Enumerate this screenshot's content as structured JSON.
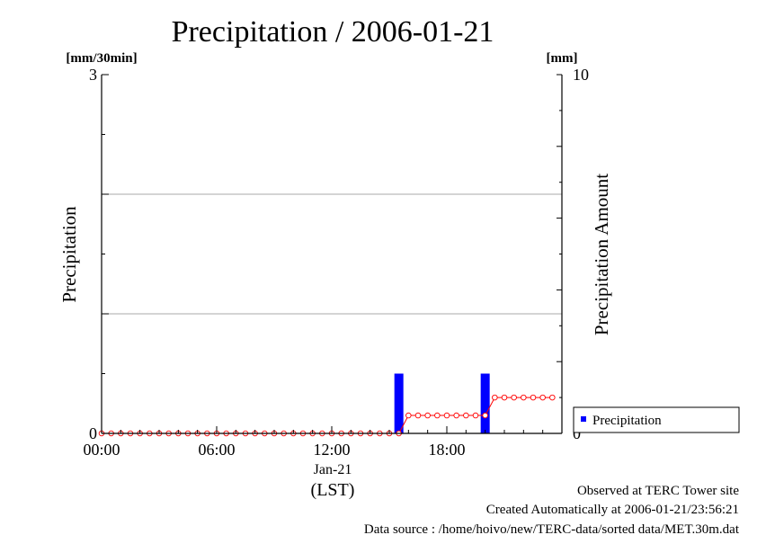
{
  "chart_data": {
    "type": "bar",
    "title": "Precipitation / 2006-01-21",
    "y_left_unit": "[mm/30min]",
    "y_right_unit": "[mm]",
    "ylabel_left": "Precipitation",
    "ylabel_right": "Precipitation Amount",
    "ylim_left": [
      0,
      3
    ],
    "ylim_right": [
      0,
      10
    ],
    "xlim_hours": [
      0,
      24
    ],
    "x_ticks": [
      {
        "hour": 0,
        "label": "00:00"
      },
      {
        "hour": 6,
        "label": "06:00"
      },
      {
        "hour": 12,
        "label": "12:00"
      },
      {
        "hour": 18,
        "label": "18:00"
      }
    ],
    "x_date_label": "Jan-21",
    "x_axis_label": "(LST)",
    "left_tick_labels": [
      "0",
      "3"
    ],
    "right_tick_labels": [
      "0",
      "10"
    ],
    "grid": "horizontal",
    "grid_values": [
      1,
      2
    ],
    "legend_position": "lower-right outside",
    "series": [
      {
        "name": "Precipitation",
        "kind": "bar",
        "axis": "left",
        "color": "#0000ff",
        "x": [
          "15:30",
          "20:00"
        ],
        "values": [
          0.5,
          0.5
        ]
      },
      {
        "kind": "cumulative-line",
        "axis": "right",
        "color": "#ff0000",
        "x_start_hour": 0,
        "x_step_hours": 0.5,
        "values": [
          0,
          0,
          0,
          0,
          0,
          0,
          0,
          0,
          0,
          0,
          0,
          0,
          0,
          0,
          0,
          0,
          0,
          0,
          0,
          0,
          0,
          0,
          0,
          0,
          0,
          0,
          0,
          0,
          0,
          0,
          0,
          0,
          0.5,
          0.5,
          0.5,
          0.5,
          0.5,
          0.5,
          0.5,
          0.5,
          0.5,
          1.0,
          1.0,
          1.0,
          1.0,
          1.0,
          1.0,
          1.0
        ]
      }
    ]
  },
  "footer": {
    "line1": "Observed at TERC Tower site",
    "line2": "Created Automatically at 2006-01-21/23:56:21",
    "line3": "Data source : /home/hoivo/new/TERC-data/sorted  data/MET.30m.dat"
  }
}
